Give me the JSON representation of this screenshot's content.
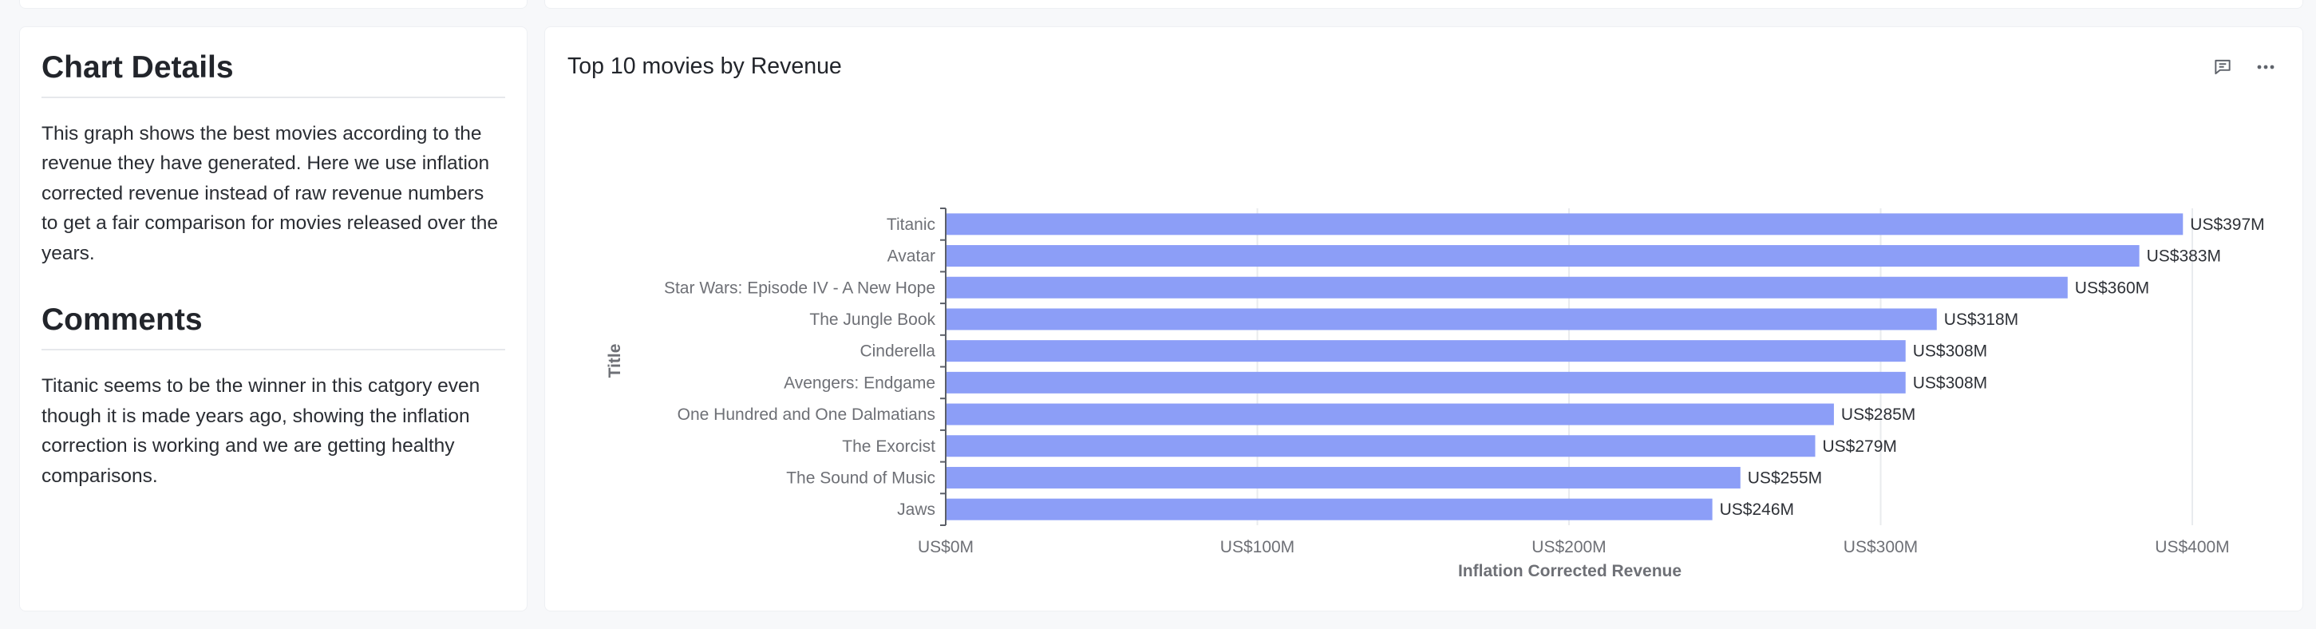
{
  "chart_details": {
    "heading": "Chart Details",
    "body": "This graph shows the best movies according to the revenue they have generated. Here we use inflation corrected revenue instead of raw revenue numbers to get a fair comparison for movies released over the years."
  },
  "comments": {
    "heading": "Comments",
    "body": "Titanic seems to be the winner in this catgory even though it is made years ago, showing the inflation correction is working and we are getting healthy comparisons."
  },
  "chart_card": {
    "title": "Top 10 movies by Revenue",
    "comment_icon": "comment-icon",
    "more_icon": "more-options-icon"
  },
  "chart_data": {
    "type": "bar",
    "orientation": "horizontal",
    "title": "Top 10 movies by Revenue",
    "xlabel": "Inflation Corrected Revenue",
    "ylabel": "Title",
    "categories": [
      "Titanic",
      "Avatar",
      "Star Wars: Episode IV - A New Hope",
      "The Jungle Book",
      "Cinderella",
      "Avengers: Endgame",
      "One Hundred and One Dalmatians",
      "The Exorcist",
      "The Sound of Music",
      "Jaws"
    ],
    "values": [
      397,
      383,
      360,
      318,
      308,
      308,
      285,
      279,
      255,
      246
    ],
    "value_labels": [
      "US$397M",
      "US$383M",
      "US$360M",
      "US$318M",
      "US$308M",
      "US$308M",
      "US$285M",
      "US$279M",
      "US$255M",
      "US$246M"
    ],
    "x_ticks": [
      0,
      100,
      200,
      300,
      400
    ],
    "x_tick_labels": [
      "US$0M",
      "US$100M",
      "US$200M",
      "US$300M",
      "US$400M"
    ],
    "xlim": [
      0,
      400
    ],
    "bar_color": "#8c9ef7",
    "grid": true
  }
}
